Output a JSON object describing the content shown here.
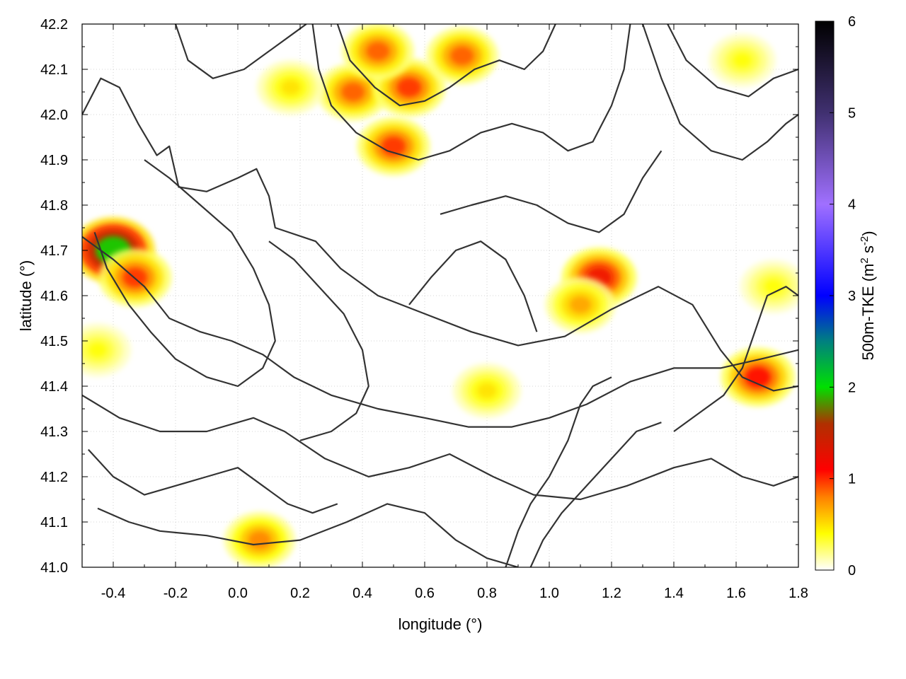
{
  "chart_data": {
    "type": "heatmap",
    "xlabel": "longitude (°)",
    "ylabel": "latitude (°)",
    "xlim": [
      -0.5,
      1.8
    ],
    "ylim": [
      41.0,
      42.2
    ],
    "x_ticks": [
      -0.4,
      -0.2,
      0.0,
      0.2,
      0.4,
      0.6,
      0.8,
      1.0,
      1.2,
      1.4,
      1.6,
      1.8
    ],
    "x_tick_labels": [
      "-0.4",
      "-0.2",
      "0.0",
      "0.2",
      "0.4",
      "0.6",
      "0.8",
      "1.0",
      "1.2",
      "1.4",
      "1.6",
      "1.8"
    ],
    "y_ticks": [
      41.0,
      41.1,
      41.2,
      41.3,
      41.4,
      41.5,
      41.6,
      41.7,
      41.8,
      41.9,
      42.0,
      42.1,
      42.2
    ],
    "y_tick_labels": [
      "41.0",
      "41.1",
      "41.2",
      "41.3",
      "41.4",
      "41.5",
      "41.6",
      "41.7",
      "41.8",
      "41.9",
      "42.0",
      "42.1",
      "42.2"
    ],
    "grid": true,
    "colorbar": {
      "label_main": "500m-TKE (m",
      "label_sup1": "2",
      "label_mid": " s",
      "label_sup2": "-2",
      "label_end": ")",
      "range": [
        0,
        6
      ],
      "ticks": [
        0,
        1,
        2,
        3,
        4,
        5,
        6
      ],
      "tick_labels": [
        "0",
        "1",
        "2",
        "3",
        "4",
        "5",
        "6"
      ],
      "stops": [
        {
          "v": 0.0,
          "color": "#ffffff"
        },
        {
          "v": 0.4,
          "color": "#ffff00"
        },
        {
          "v": 0.8,
          "color": "#ff8000"
        },
        {
          "v": 1.1,
          "color": "#ff0000"
        },
        {
          "v": 1.6,
          "color": "#b03000"
        },
        {
          "v": 2.0,
          "color": "#00e000"
        },
        {
          "v": 2.5,
          "color": "#008080"
        },
        {
          "v": 3.0,
          "color": "#0000ff"
        },
        {
          "v": 4.0,
          "color": "#a070ff"
        },
        {
          "v": 5.0,
          "color": "#403070"
        },
        {
          "v": 6.0,
          "color": "#000000"
        }
      ]
    },
    "hotspots": [
      {
        "lon": -0.4,
        "lat": 41.7,
        "value": 2.0
      },
      {
        "lon": -0.33,
        "lat": 41.64,
        "value": 1.0
      },
      {
        "lon": 0.5,
        "lat": 41.93,
        "value": 1.0
      },
      {
        "lon": 0.37,
        "lat": 42.05,
        "value": 0.9
      },
      {
        "lon": 0.55,
        "lat": 42.06,
        "value": 1.0
      },
      {
        "lon": 0.45,
        "lat": 42.14,
        "value": 0.9
      },
      {
        "lon": 0.72,
        "lat": 42.13,
        "value": 0.9
      },
      {
        "lon": 1.16,
        "lat": 41.64,
        "value": 1.2
      },
      {
        "lon": 1.1,
        "lat": 41.58,
        "value": 0.7
      },
      {
        "lon": 1.67,
        "lat": 41.42,
        "value": 1.1
      },
      {
        "lon": 0.07,
        "lat": 41.06,
        "value": 0.8
      },
      {
        "lon": 0.8,
        "lat": 41.39,
        "value": 0.5
      },
      {
        "lon": 0.17,
        "lat": 42.06,
        "value": 0.5
      },
      {
        "lon": 1.62,
        "lat": 42.12,
        "value": 0.4
      },
      {
        "lon": -0.45,
        "lat": 41.48,
        "value": 0.4
      },
      {
        "lon": 1.72,
        "lat": 41.62,
        "value": 0.4
      }
    ],
    "contours": [
      [
        [
          -0.5,
          42.0
        ],
        [
          -0.44,
          42.08
        ],
        [
          -0.38,
          42.06
        ],
        [
          -0.32,
          41.98
        ],
        [
          -0.26,
          41.91
        ],
        [
          -0.22,
          41.93
        ],
        [
          -0.19,
          41.84
        ],
        [
          -0.1,
          41.83
        ],
        [
          0.0,
          41.86
        ],
        [
          0.06,
          41.88
        ],
        [
          0.1,
          41.82
        ],
        [
          0.12,
          41.75
        ],
        [
          0.25,
          41.72
        ],
        [
          0.33,
          41.66
        ],
        [
          0.45,
          41.6
        ],
        [
          0.6,
          41.56
        ],
        [
          0.75,
          41.52
        ],
        [
          0.9,
          41.49
        ],
        [
          1.05,
          41.51
        ],
        [
          1.2,
          41.57
        ],
        [
          1.35,
          41.62
        ],
        [
          1.46,
          41.58
        ],
        [
          1.55,
          41.48
        ],
        [
          1.62,
          41.42
        ],
        [
          1.72,
          41.39
        ],
        [
          1.8,
          41.4
        ]
      ],
      [
        [
          -0.5,
          41.73
        ],
        [
          -0.4,
          41.68
        ],
        [
          -0.3,
          41.62
        ],
        [
          -0.22,
          41.55
        ],
        [
          -0.12,
          41.52
        ],
        [
          -0.02,
          41.5
        ],
        [
          0.08,
          41.47
        ],
        [
          0.18,
          41.42
        ],
        [
          0.3,
          41.38
        ],
        [
          0.45,
          41.35
        ],
        [
          0.6,
          41.33
        ],
        [
          0.74,
          41.31
        ],
        [
          0.88,
          41.31
        ],
        [
          1.0,
          41.33
        ],
        [
          1.12,
          41.36
        ],
        [
          1.26,
          41.41
        ],
        [
          1.4,
          41.44
        ],
        [
          1.55,
          41.44
        ],
        [
          1.68,
          41.46
        ],
        [
          1.8,
          41.48
        ]
      ],
      [
        [
          -0.5,
          41.38
        ],
        [
          -0.38,
          41.33
        ],
        [
          -0.25,
          41.3
        ],
        [
          -0.1,
          41.3
        ],
        [
          0.05,
          41.33
        ],
        [
          0.15,
          41.3
        ],
        [
          0.28,
          41.24
        ],
        [
          0.42,
          41.2
        ],
        [
          0.55,
          41.22
        ],
        [
          0.68,
          41.25
        ],
        [
          0.82,
          41.2
        ],
        [
          0.95,
          41.16
        ],
        [
          1.1,
          41.15
        ],
        [
          1.25,
          41.18
        ],
        [
          1.4,
          41.22
        ],
        [
          1.52,
          41.24
        ],
        [
          1.62,
          41.2
        ],
        [
          1.72,
          41.18
        ],
        [
          1.8,
          41.2
        ]
      ],
      [
        [
          -0.45,
          41.13
        ],
        [
          -0.35,
          41.1
        ],
        [
          -0.25,
          41.08
        ],
        [
          -0.1,
          41.07
        ],
        [
          0.05,
          41.05
        ],
        [
          0.2,
          41.06
        ],
        [
          0.35,
          41.1
        ],
        [
          0.48,
          41.14
        ],
        [
          0.6,
          41.12
        ],
        [
          0.7,
          41.06
        ],
        [
          0.8,
          41.02
        ],
        [
          0.9,
          41.0
        ]
      ],
      [
        [
          0.24,
          42.2
        ],
        [
          0.26,
          42.1
        ],
        [
          0.3,
          42.02
        ],
        [
          0.38,
          41.96
        ],
        [
          0.48,
          41.92
        ],
        [
          0.58,
          41.9
        ],
        [
          0.68,
          41.92
        ],
        [
          0.78,
          41.96
        ],
        [
          0.88,
          41.98
        ],
        [
          0.98,
          41.96
        ],
        [
          1.06,
          41.92
        ],
        [
          1.14,
          41.94
        ],
        [
          1.2,
          42.02
        ],
        [
          1.24,
          42.1
        ],
        [
          1.26,
          42.2
        ]
      ],
      [
        [
          0.32,
          42.2
        ],
        [
          0.36,
          42.12
        ],
        [
          0.44,
          42.06
        ],
        [
          0.52,
          42.02
        ],
        [
          0.6,
          42.03
        ],
        [
          0.68,
          42.06
        ],
        [
          0.76,
          42.1
        ],
        [
          0.84,
          42.12
        ],
        [
          0.92,
          42.1
        ],
        [
          0.98,
          42.14
        ],
        [
          1.02,
          42.2
        ]
      ],
      [
        [
          -0.2,
          42.2
        ],
        [
          -0.16,
          42.12
        ],
        [
          -0.08,
          42.08
        ],
        [
          0.02,
          42.1
        ],
        [
          0.1,
          42.14
        ],
        [
          0.18,
          42.18
        ],
        [
          0.22,
          42.2
        ]
      ],
      [
        [
          1.3,
          42.2
        ],
        [
          1.36,
          42.08
        ],
        [
          1.42,
          41.98
        ],
        [
          1.52,
          41.92
        ],
        [
          1.62,
          41.9
        ],
        [
          1.7,
          41.94
        ],
        [
          1.76,
          41.98
        ],
        [
          1.8,
          42.0
        ]
      ],
      [
        [
          1.38,
          42.2
        ],
        [
          1.44,
          42.12
        ],
        [
          1.54,
          42.06
        ],
        [
          1.64,
          42.04
        ],
        [
          1.72,
          42.08
        ],
        [
          1.8,
          42.1
        ]
      ],
      [
        [
          -0.3,
          41.9
        ],
        [
          -0.22,
          41.86
        ],
        [
          -0.12,
          41.8
        ],
        [
          -0.02,
          41.74
        ],
        [
          0.05,
          41.66
        ],
        [
          0.1,
          41.58
        ],
        [
          0.12,
          41.5
        ],
        [
          0.08,
          41.44
        ],
        [
          0.0,
          41.4
        ],
        [
          -0.1,
          41.42
        ],
        [
          -0.2,
          41.46
        ],
        [
          -0.28,
          41.52
        ],
        [
          -0.35,
          41.58
        ],
        [
          -0.42,
          41.66
        ],
        [
          -0.46,
          41.74
        ]
      ],
      [
        [
          0.65,
          41.78
        ],
        [
          0.75,
          41.8
        ],
        [
          0.86,
          41.82
        ],
        [
          0.96,
          41.8
        ],
        [
          1.06,
          41.76
        ],
        [
          1.16,
          41.74
        ],
        [
          1.24,
          41.78
        ],
        [
          1.3,
          41.86
        ],
        [
          1.36,
          41.92
        ]
      ],
      [
        [
          0.1,
          41.72
        ],
        [
          0.18,
          41.68
        ],
        [
          0.26,
          41.62
        ],
        [
          0.34,
          41.56
        ],
        [
          0.4,
          41.48
        ],
        [
          0.42,
          41.4
        ],
        [
          0.38,
          41.34
        ],
        [
          0.3,
          41.3
        ],
        [
          0.2,
          41.28
        ]
      ],
      [
        [
          0.55,
          41.58
        ],
        [
          0.62,
          41.64
        ],
        [
          0.7,
          41.7
        ],
        [
          0.78,
          41.72
        ],
        [
          0.86,
          41.68
        ],
        [
          0.92,
          41.6
        ],
        [
          0.96,
          41.52
        ]
      ],
      [
        [
          0.86,
          41.0
        ],
        [
          0.9,
          41.08
        ],
        [
          0.94,
          41.14
        ],
        [
          1.0,
          41.2
        ],
        [
          1.06,
          41.28
        ],
        [
          1.1,
          41.36
        ],
        [
          1.14,
          41.4
        ],
        [
          1.2,
          41.42
        ]
      ],
      [
        [
          0.94,
          41.0
        ],
        [
          0.98,
          41.06
        ],
        [
          1.04,
          41.12
        ],
        [
          1.12,
          41.18
        ],
        [
          1.2,
          41.24
        ],
        [
          1.28,
          41.3
        ],
        [
          1.36,
          41.32
        ]
      ],
      [
        [
          1.4,
          41.3
        ],
        [
          1.48,
          41.34
        ],
        [
          1.56,
          41.38
        ],
        [
          1.62,
          41.44
        ],
        [
          1.66,
          41.52
        ],
        [
          1.7,
          41.6
        ],
        [
          1.76,
          41.62
        ],
        [
          1.8,
          41.6
        ]
      ],
      [
        [
          -0.48,
          41.26
        ],
        [
          -0.4,
          41.2
        ],
        [
          -0.3,
          41.16
        ],
        [
          -0.2,
          41.18
        ],
        [
          -0.1,
          41.2
        ],
        [
          0.0,
          41.22
        ],
        [
          0.08,
          41.18
        ],
        [
          0.16,
          41.14
        ],
        [
          0.24,
          41.12
        ],
        [
          0.32,
          41.14
        ]
      ]
    ]
  }
}
